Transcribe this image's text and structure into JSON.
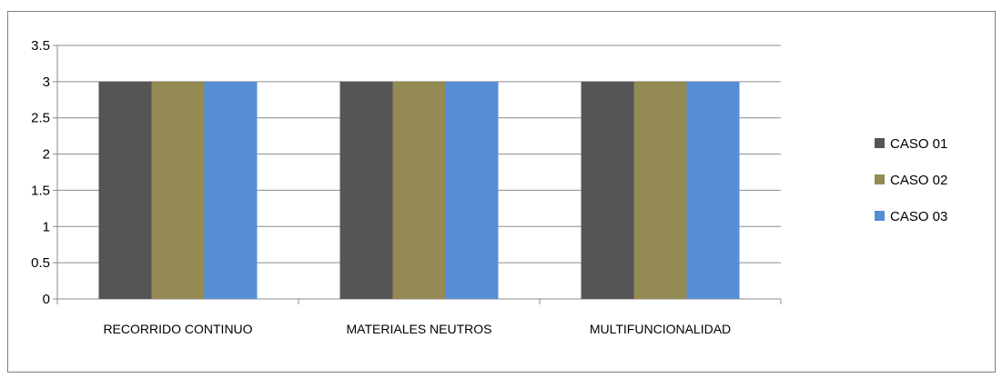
{
  "chart_data": {
    "type": "bar",
    "categories": [
      "RECORRIDO CONTINUO",
      "MATERIALES NEUTROS",
      "MULTIFUNCIONALIDAD"
    ],
    "series": [
      {
        "name": "CASO 01",
        "color": "#555555",
        "values": [
          3,
          3,
          3
        ]
      },
      {
        "name": "CASO 02",
        "color": "#948a54",
        "values": [
          3,
          3,
          3
        ]
      },
      {
        "name": "CASO 03",
        "color": "#558ed5",
        "values": [
          3,
          3,
          3
        ]
      }
    ],
    "yticks": [
      "0",
      "0.5",
      "1",
      "1.5",
      "2",
      "2.5",
      "3",
      "3.5"
    ],
    "ylim": [
      0,
      3.5
    ],
    "grid": true,
    "legend_position": "right"
  }
}
